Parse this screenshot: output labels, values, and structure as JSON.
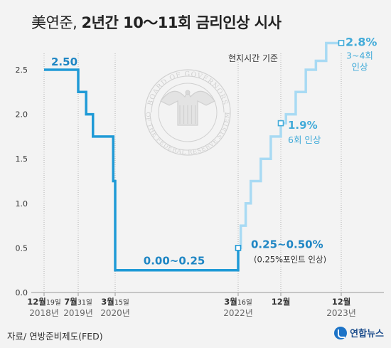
{
  "title": {
    "prefix": "美연준,",
    "main": "2년간 10～11회 금리인상 시사"
  },
  "note": "현지시간 기준",
  "source": "자료/ 연방준비제도(FED)",
  "logo": "연합뉴스",
  "seal": {
    "top_text": "BOARD OF GOVERNORS",
    "bottom_text": "OF THE FEDERAL RESERVE SYSTEM"
  },
  "colors": {
    "actual": "#1f9ad6",
    "projected": "#a8daf3",
    "label_dark": "#1f86c4",
    "label_light": "#42abd9",
    "axis": "#9a9a9a",
    "text": "#333333"
  },
  "chart_data": {
    "type": "line",
    "step": true,
    "ylim": [
      0,
      2.9
    ],
    "yticks": [
      "0.0",
      "0.5",
      "1.0",
      "1.5",
      "2.0",
      "2.5"
    ],
    "x_axis_labels": [
      {
        "x": "2018-12-19",
        "month": "12월",
        "day": "19일",
        "year": "2018년"
      },
      {
        "x": "2019-07-31",
        "month": "7월",
        "day": "31일",
        "year": "2019년"
      },
      {
        "x": "2020-03-15",
        "month": "3월",
        "day": "15일",
        "year": "2020년"
      },
      {
        "x": "2022-03-16",
        "month": "3월",
        "day": "16일",
        "year": "2022년"
      },
      {
        "x": "2022-12",
        "month": "12월",
        "day": "",
        "year": ""
      },
      {
        "x": "2023-12",
        "month": "12월",
        "day": "",
        "year": "2023년"
      }
    ],
    "series": [
      {
        "values": [
          {
            "x": "2018-12-19",
            "y": 2.5
          },
          {
            "x": "2019-07-31",
            "y": 2.25
          },
          {
            "x": "2019-09-18",
            "y": 2.0
          },
          {
            "x": "2019-10-30",
            "y": 1.75
          },
          {
            "x": "2020-03-03",
            "y": 1.25
          },
          {
            "x": "2020-03-15",
            "y": 0.25
          },
          {
            "x": "2022-03-16",
            "y": 0.5
          }
        ]
      },
      {
        "values": [
          {
            "x": "2022-03-16",
            "y": 0.5
          },
          {
            "x": "2022-04",
            "y": 0.75
          },
          {
            "x": "2022-05",
            "y": 1.0
          },
          {
            "x": "2022-06",
            "y": 1.25
          },
          {
            "x": "2022-08",
            "y": 1.5
          },
          {
            "x": "2022-10",
            "y": 1.75
          },
          {
            "x": "2022-12",
            "y": 1.9
          },
          {
            "x": "2023-01",
            "y": 2.0
          },
          {
            "x": "2023-03",
            "y": 2.25
          },
          {
            "x": "2023-05",
            "y": 2.5
          },
          {
            "x": "2023-07",
            "y": 2.6
          },
          {
            "x": "2023-09",
            "y": 2.8
          },
          {
            "x": "2023-12",
            "y": 2.8
          }
        ]
      }
    ],
    "annotations": [
      {
        "x": "2018-12-19",
        "y": 2.5,
        "text": "2.50"
      },
      {
        "x": "2021-03",
        "y": 0.25,
        "text": "0.00~0.25"
      },
      {
        "x": "2022-03-16",
        "y": 0.5,
        "text": "0.25~0.50%",
        "sub": "(0.25%포인트 인상)"
      },
      {
        "x": "2022-12",
        "y": 1.9,
        "text": "1.9%",
        "sub": "6회 인상"
      },
      {
        "x": "2023-12",
        "y": 2.8,
        "text": "2.8%",
        "sub": "3~4회",
        "sub2": "인상"
      }
    ]
  }
}
